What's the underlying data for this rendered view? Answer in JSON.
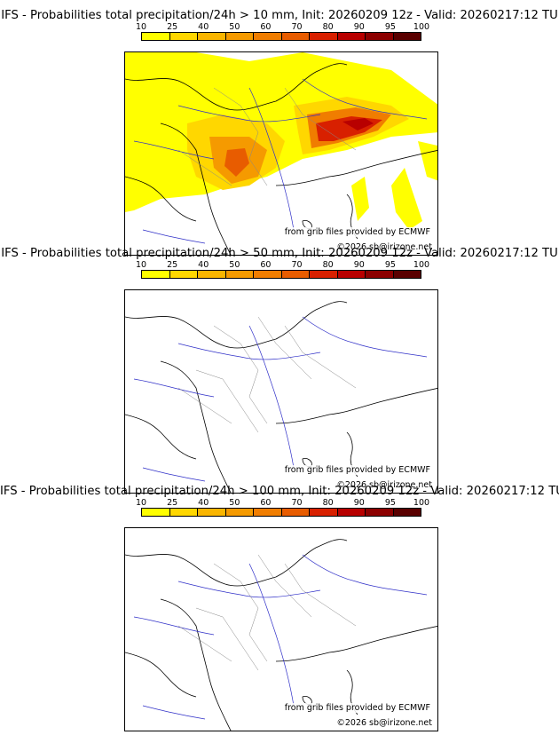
{
  "colorbar": {
    "ticks": [
      "10",
      "25",
      "40",
      "50",
      "60",
      "70",
      "80",
      "90",
      "95",
      "100"
    ],
    "colors": [
      "#ffff00",
      "#ffd700",
      "#f9b500",
      "#f59a00",
      "#f07d00",
      "#e85c00",
      "#d82000",
      "#b80000",
      "#8c0000",
      "#5a0000"
    ]
  },
  "panels": [
    {
      "title": "IFS - Probabilities total precipitation/24h > 10 mm, Init: 20260209 12z - Valid: 20260217:12 TU",
      "credit_source": "from grib files provided by ECMWF",
      "credit_copyright": "©2026 sb@irizone.net"
    },
    {
      "title": "IFS - Probabilities total precipitation/24h > 50 mm, Init: 20260209 12z - Valid: 20260217:12 TU",
      "credit_source": "from grib files provided by ECMWF",
      "credit_copyright": "©2026 sb@irizone.net"
    },
    {
      "title": "IFS - Probabilities total precipitation/24h > 100 mm, Init: 20260209 12z - Valid: 20260217:12 TU",
      "credit_source": "from grib files provided by ECMWF",
      "credit_copyright": "©2026 sb@irizone.net"
    }
  ]
}
